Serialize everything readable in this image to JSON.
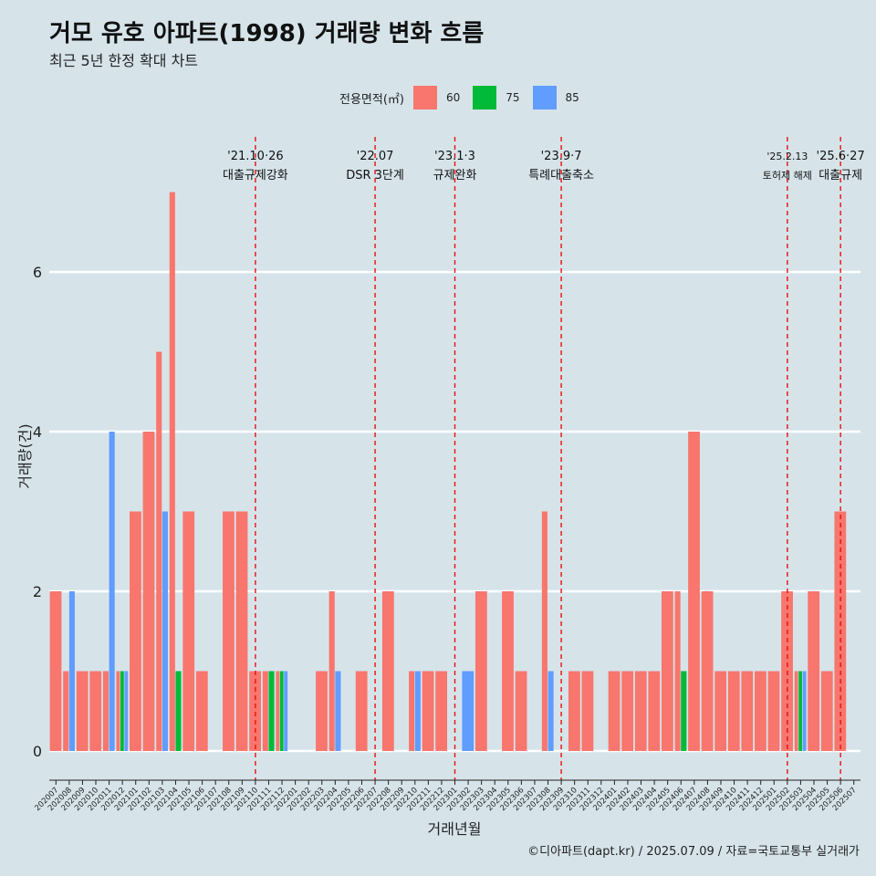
{
  "title": "거모 유호 아파트(1998) 거래량 변화 흐름",
  "subtitle": "최근 5년 한정 확대 차트",
  "caption": "©디아파트(dapt.kr) / 2025.07.09 / 자료=국토교통부 실거래가",
  "legend": {
    "title": "전용면적(㎡)",
    "items": [
      {
        "label": "60",
        "color": "#f8766d"
      },
      {
        "label": "75",
        "color": "#00ba38"
      },
      {
        "label": "85",
        "color": "#619cff"
      }
    ]
  },
  "chart_data": {
    "type": "bar",
    "xlabel": "거래년월",
    "ylabel": "거래량(건)",
    "ylim": [
      0,
      7
    ],
    "yticks": [
      0,
      2,
      4,
      6
    ],
    "grid": "horizontal",
    "categories": [
      "202007",
      "202008",
      "202009",
      "202010",
      "202011",
      "202012",
      "202101",
      "202102",
      "202103",
      "202104",
      "202105",
      "202106",
      "202107",
      "202108",
      "202109",
      "202110",
      "202111",
      "202112",
      "202201",
      "202202",
      "202203",
      "202204",
      "202205",
      "202206",
      "202207",
      "202208",
      "202209",
      "202210",
      "202211",
      "202212",
      "202301",
      "202302",
      "202303",
      "202304",
      "202305",
      "202306",
      "202307",
      "202308",
      "202309",
      "202310",
      "202311",
      "202312",
      "202401",
      "202402",
      "202403",
      "202404",
      "202405",
      "202406",
      "202407",
      "202408",
      "202409",
      "202410",
      "202411",
      "202412",
      "202501",
      "202502",
      "202503",
      "202504",
      "202505",
      "202506",
      "202507"
    ],
    "series": [
      {
        "name": "60",
        "color": "#f8766d",
        "values": [
          2,
          1,
          1,
          1,
          1,
          1,
          3,
          4,
          5,
          7,
          3,
          1,
          0,
          3,
          3,
          1,
          1,
          1,
          0,
          0,
          1,
          2,
          0,
          1,
          0,
          2,
          0,
          1,
          1,
          1,
          0,
          0,
          2,
          0,
          2,
          1,
          0,
          3,
          0,
          1,
          1,
          0,
          1,
          1,
          1,
          1,
          2,
          2,
          4,
          2,
          1,
          1,
          1,
          1,
          1,
          2,
          1,
          2,
          1,
          3,
          0
        ]
      },
      {
        "name": "75",
        "color": "#00ba38",
        "values": [
          0,
          0,
          0,
          0,
          0,
          1,
          0,
          0,
          0,
          1,
          0,
          0,
          0,
          0,
          0,
          0,
          1,
          1,
          0,
          0,
          0,
          0,
          0,
          0,
          0,
          0,
          0,
          0,
          0,
          0,
          0,
          0,
          0,
          0,
          0,
          0,
          0,
          0,
          0,
          0,
          0,
          0,
          0,
          0,
          0,
          0,
          0,
          1,
          0,
          0,
          0,
          0,
          0,
          0,
          0,
          0,
          1,
          0,
          0,
          0,
          0
        ]
      },
      {
        "name": "85",
        "color": "#619cff",
        "values": [
          0,
          2,
          0,
          0,
          4,
          1,
          0,
          0,
          3,
          0,
          0,
          0,
          0,
          0,
          0,
          0,
          0,
          1,
          0,
          0,
          0,
          1,
          0,
          0,
          0,
          0,
          0,
          1,
          0,
          0,
          0,
          1,
          0,
          0,
          0,
          0,
          0,
          1,
          0,
          0,
          0,
          0,
          0,
          0,
          0,
          0,
          0,
          0,
          0,
          0,
          0,
          0,
          0,
          0,
          0,
          0,
          1,
          0,
          0,
          0,
          0
        ]
      }
    ],
    "annotations": [
      {
        "date": "'21.10·26",
        "label": "대출규제강화",
        "x": "202110"
      },
      {
        "date": "'22.07",
        "label": "DSR 3단계",
        "x": "202207"
      },
      {
        "date": "'23.1·3",
        "label": "규제완화",
        "x": "202301"
      },
      {
        "date": "'23.9·7",
        "label": "특례대출축소",
        "x": "202309"
      },
      {
        "date": "'25.2.13",
        "label": "토허제 해제",
        "x": "202502"
      },
      {
        "date": "'25.6·27",
        "label": "대출규제",
        "x": "202506"
      }
    ]
  }
}
